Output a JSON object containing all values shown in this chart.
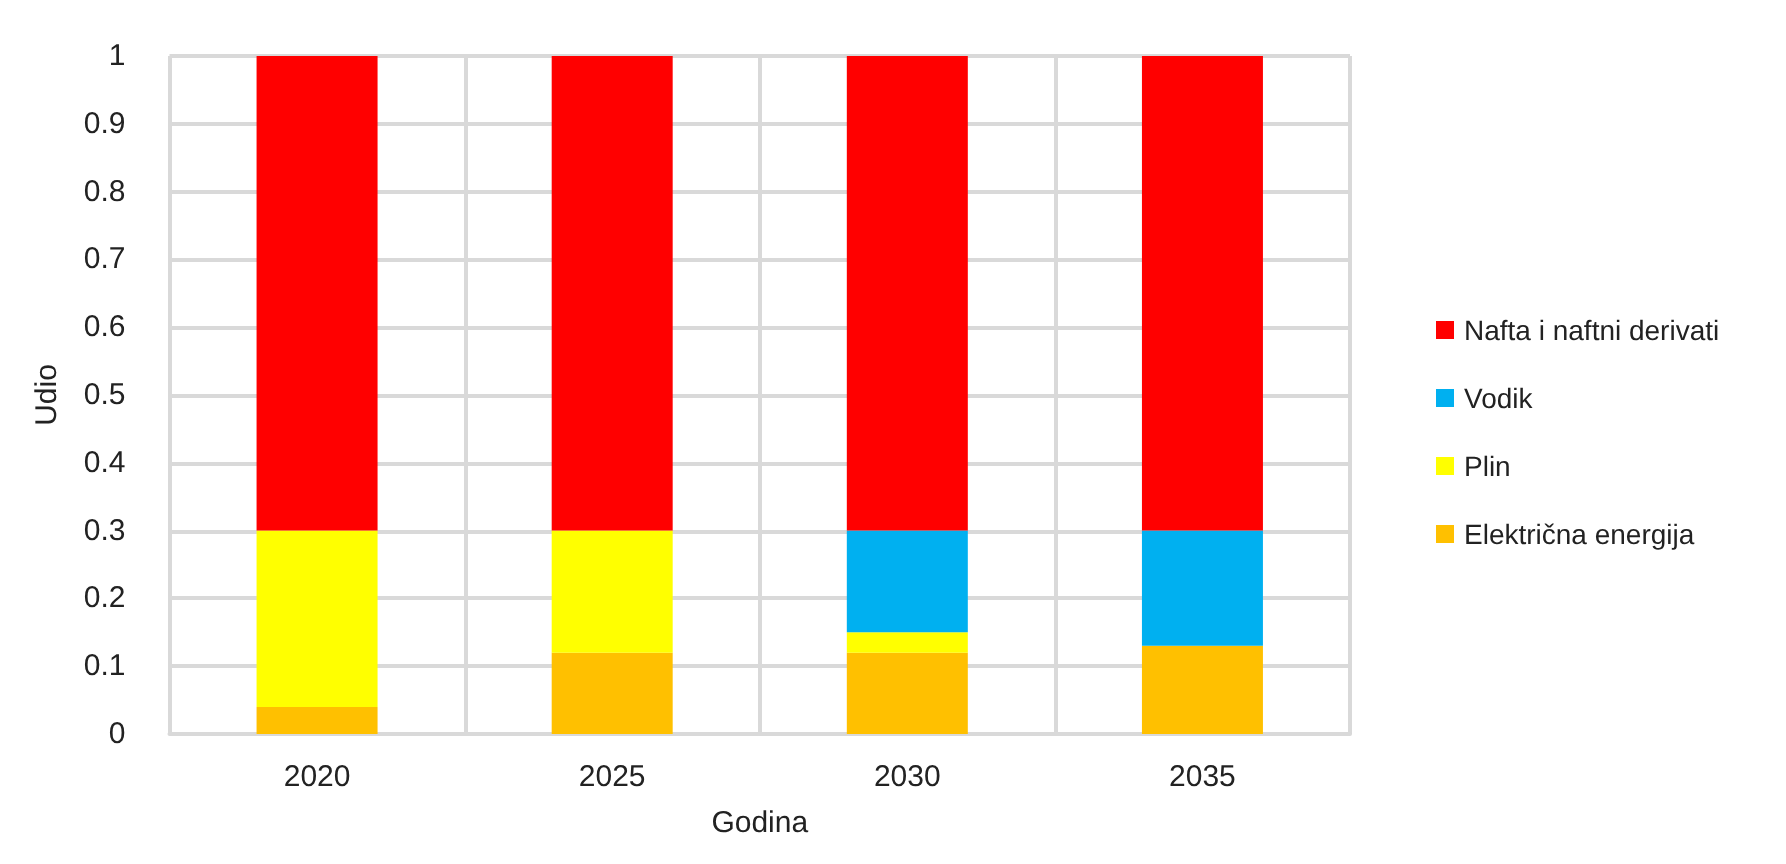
{
  "chart_data": {
    "type": "bar",
    "stacked": true,
    "xlabel": "Godina",
    "ylabel": "Udio",
    "categories": [
      "2020",
      "2025",
      "2030",
      "2035"
    ],
    "series": [
      {
        "name": "Električna energija",
        "color": "#ffc000",
        "values": [
          0.04,
          0.12,
          0.12,
          0.13
        ]
      },
      {
        "name": "Plin",
        "color": "#ffff00",
        "values": [
          0.26,
          0.18,
          0.03,
          0
        ]
      },
      {
        "name": "Vodik",
        "color": "#00b0f0",
        "values": [
          0,
          0,
          0.15,
          0.17
        ]
      },
      {
        "name": "Nafta i naftni derivati",
        "color": "#ff0000",
        "values": [
          0.7,
          0.7,
          0.7,
          0.7
        ]
      }
    ],
    "ylim": [
      0,
      1
    ],
    "yticks": [
      0,
      0.1,
      0.2,
      0.3,
      0.4,
      0.5,
      0.6,
      0.7,
      0.8,
      0.9,
      1
    ],
    "grid": true,
    "legend": "right"
  }
}
